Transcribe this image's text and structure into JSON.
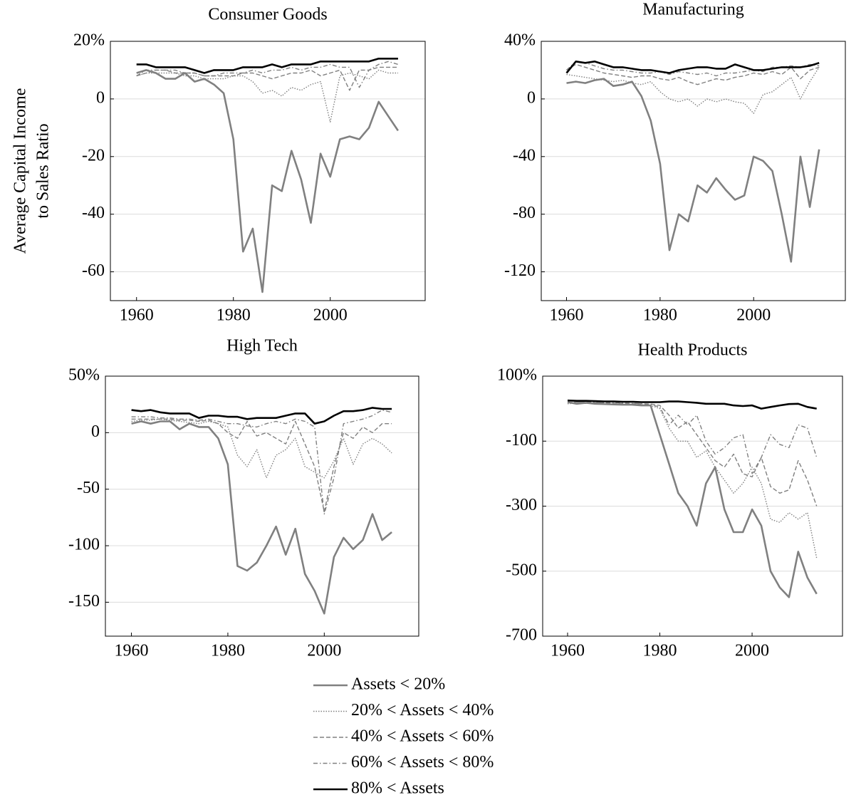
{
  "chart_data": [
    {
      "type": "line",
      "title": "Consumer Goods",
      "ylabel": [
        "Average Capital Income",
        "to Sales Ratio"
      ],
      "x": [
        1960,
        1962,
        1964,
        1966,
        1968,
        1970,
        1972,
        1974,
        1976,
        1978,
        1980,
        1982,
        1984,
        1986,
        1988,
        1990,
        1992,
        1994,
        1996,
        1998,
        2000,
        2002,
        2004,
        2006,
        2008,
        2010,
        2012,
        2014
      ],
      "xlim": [
        1954.6,
        2019.6
      ],
      "xticks": [
        1960,
        1980,
        2000
      ],
      "ylim": [
        -70,
        20
      ],
      "yticks": [
        {
          "value": 20,
          "label": "20%"
        },
        0,
        -20,
        -40,
        -60
      ],
      "grid": true,
      "series": [
        {
          "name": "Assets < 20%",
          "color": "#808080",
          "dash": "solid",
          "values": [
            9,
            10,
            9,
            7,
            7,
            9,
            6,
            7,
            5,
            2,
            -14,
            -53,
            -45,
            -67,
            -30,
            -32,
            -18,
            -28,
            -43,
            -19,
            -27,
            -14,
            -13,
            -14,
            -10,
            -1,
            -6,
            -11
          ]
        },
        {
          "name": "20% < Assets < 40%",
          "color": "#808080",
          "dash": "dotted",
          "values": [
            8,
            9,
            9,
            9,
            9,
            8,
            8,
            7,
            7,
            7,
            8,
            8,
            6,
            2,
            3,
            1,
            4,
            3,
            5,
            6,
            -8,
            8,
            9,
            8,
            7,
            10,
            9,
            9
          ]
        },
        {
          "name": "40% < Assets < 60%",
          "color": "#808080",
          "dash": "dashed",
          "values": [
            8,
            9,
            10,
            10,
            9,
            9,
            9,
            8,
            8,
            8,
            8,
            9,
            9,
            8,
            7,
            8,
            9,
            9,
            10,
            8,
            9,
            10,
            3,
            10,
            10,
            11,
            11,
            11
          ]
        },
        {
          "name": "60% < Assets < 80%",
          "color": "#808080",
          "dash": "dashdot",
          "values": [
            8,
            10,
            10,
            10,
            10,
            9,
            9,
            8,
            8,
            9,
            9,
            9,
            10,
            9,
            10,
            10,
            11,
            10,
            11,
            11,
            12,
            11,
            11,
            4,
            10,
            12,
            13,
            12
          ]
        },
        {
          "name": "80% < Assets",
          "color": "#000000",
          "dash": "solid",
          "values": [
            12,
            12,
            11,
            11,
            11,
            11,
            10,
            9,
            10,
            10,
            10,
            11,
            11,
            11,
            12,
            11,
            12,
            12,
            12,
            13,
            13,
            13,
            13,
            13,
            13,
            14,
            14,
            14
          ]
        }
      ]
    },
    {
      "type": "line",
      "title": "Manufacturing",
      "x": [
        1960,
        1962,
        1964,
        1966,
        1968,
        1970,
        1972,
        1974,
        1976,
        1978,
        1980,
        1982,
        1984,
        1986,
        1988,
        1990,
        1992,
        1994,
        1996,
        1998,
        2000,
        2002,
        2004,
        2006,
        2008,
        2010,
        2012,
        2014
      ],
      "xlim": [
        1954.6,
        2019.6
      ],
      "xticks": [
        1960,
        1980,
        2000
      ],
      "ylim": [
        -140,
        40
      ],
      "yticks": [
        {
          "value": 40,
          "label": "40%"
        },
        0,
        -40,
        -80,
        -120
      ],
      "grid": true,
      "series": [
        {
          "name": "Assets < 20%",
          "color": "#808080",
          "dash": "solid",
          "values": [
            11,
            12,
            11,
            13,
            14,
            9,
            10,
            12,
            2,
            -15,
            -45,
            -105,
            -80,
            -85,
            -60,
            -65,
            -55,
            -63,
            -70,
            -67,
            -40,
            -43,
            -50,
            -80,
            -113,
            -40,
            -75,
            -35
          ]
        },
        {
          "name": "20% < Assets < 40%",
          "color": "#808080",
          "dash": "dotted",
          "values": [
            17,
            16,
            15,
            14,
            13,
            12,
            13,
            11,
            10,
            12,
            5,
            0,
            -2,
            0,
            -5,
            0,
            -2,
            0,
            -2,
            -3,
            -10,
            3,
            5,
            10,
            15,
            0,
            12,
            22
          ]
        },
        {
          "name": "40% < Assets < 60%",
          "color": "#808080",
          "dash": "dashed",
          "values": [
            20,
            24,
            22,
            20,
            18,
            17,
            16,
            15,
            16,
            16,
            14,
            13,
            15,
            12,
            10,
            12,
            14,
            13,
            15,
            16,
            18,
            17,
            19,
            17,
            22,
            14,
            20,
            22
          ]
        },
        {
          "name": "60% < Assets < 80%",
          "color": "#808080",
          "dash": "dashdot",
          "values": [
            20,
            26,
            25,
            23,
            21,
            20,
            20,
            19,
            18,
            18,
            19,
            17,
            19,
            18,
            17,
            18,
            16,
            18,
            18,
            19,
            20,
            19,
            22,
            22,
            23,
            22,
            24,
            23
          ]
        },
        {
          "name": "80% < Assets",
          "color": "#000000",
          "dash": "solid",
          "values": [
            18,
            26,
            25,
            26,
            24,
            22,
            22,
            21,
            20,
            20,
            19,
            18,
            20,
            21,
            22,
            22,
            21,
            21,
            24,
            22,
            20,
            20,
            21,
            22,
            22,
            22,
            23,
            25
          ]
        }
      ]
    },
    {
      "type": "line",
      "title": "High Tech",
      "x": [
        1960,
        1962,
        1964,
        1966,
        1968,
        1970,
        1972,
        1974,
        1976,
        1978,
        1980,
        1982,
        1984,
        1986,
        1988,
        1990,
        1992,
        1994,
        1996,
        1998,
        2000,
        2002,
        2004,
        2006,
        2008,
        2010,
        2012,
        2014
      ],
      "xlim": [
        1954.6,
        2019.6
      ],
      "xticks": [
        1960,
        1980,
        2000
      ],
      "ylim": [
        -180,
        50
      ],
      "yticks": [
        {
          "value": 50,
          "label": "50%"
        },
        0,
        -50,
        -100,
        -150
      ],
      "grid": true,
      "series": [
        {
          "name": "Assets < 20%",
          "color": "#808080",
          "dash": "solid",
          "values": [
            8,
            10,
            8,
            10,
            10,
            3,
            8,
            5,
            5,
            -5,
            -28,
            -118,
            -122,
            -115,
            -100,
            -83,
            -108,
            -85,
            -125,
            -140,
            -160,
            -110,
            -93,
            -103,
            -95,
            -72,
            -95,
            -88
          ]
        },
        {
          "name": "20% < Assets < 40%",
          "color": "#808080",
          "dash": "dotted",
          "values": [
            10,
            11,
            11,
            12,
            11,
            10,
            9,
            8,
            10,
            8,
            5,
            -20,
            -30,
            -15,
            -40,
            -20,
            -15,
            -5,
            -30,
            -35,
            -40,
            -25,
            -5,
            -28,
            -10,
            -5,
            -10,
            -18
          ]
        },
        {
          "name": "40% < Assets < 60%",
          "color": "#808080",
          "dash": "dashed",
          "values": [
            12,
            12,
            12,
            12,
            12,
            11,
            11,
            10,
            11,
            8,
            0,
            -5,
            10,
            -3,
            0,
            -5,
            -10,
            10,
            -10,
            -30,
            -70,
            -30,
            0,
            -5,
            5,
            0,
            8,
            8
          ]
        },
        {
          "name": "60% < Assets < 80%",
          "color": "#808080",
          "dash": "dashdot",
          "values": [
            14,
            14,
            14,
            13,
            13,
            12,
            12,
            11,
            12,
            10,
            8,
            8,
            6,
            5,
            8,
            10,
            8,
            12,
            10,
            5,
            -72,
            -40,
            8,
            10,
            12,
            15,
            20,
            18
          ]
        },
        {
          "name": "80% < Assets",
          "color": "#000000",
          "dash": "solid",
          "values": [
            20,
            19,
            20,
            18,
            17,
            17,
            17,
            13,
            15,
            15,
            14,
            14,
            12,
            13,
            13,
            13,
            15,
            17,
            17,
            8,
            10,
            15,
            19,
            19,
            20,
            22,
            21,
            21
          ]
        }
      ]
    },
    {
      "type": "line",
      "title": "Health Products",
      "x": [
        1960,
        1962,
        1964,
        1966,
        1968,
        1970,
        1972,
        1974,
        1976,
        1978,
        1980,
        1982,
        1984,
        1986,
        1988,
        1990,
        1992,
        1994,
        1996,
        1998,
        2000,
        2002,
        2004,
        2006,
        2008,
        2010,
        2012,
        2014
      ],
      "xlim": [
        1954.6,
        2019.6
      ],
      "xticks": [
        1960,
        1980,
        2000
      ],
      "ylim": [
        -700,
        100
      ],
      "yticks": [
        {
          "value": 100,
          "label": "100%"
        },
        -100,
        -300,
        -500,
        -700
      ],
      "grid": true,
      "series": [
        {
          "name": "Assets < 20%",
          "color": "#808080",
          "dash": "solid",
          "values": [
            20,
            15,
            18,
            15,
            14,
            13,
            12,
            12,
            10,
            10,
            -80,
            -170,
            -260,
            -300,
            -360,
            -230,
            -180,
            -310,
            -380,
            -380,
            -310,
            -360,
            -500,
            -550,
            -580,
            -440,
            -520,
            -570
          ]
        },
        {
          "name": "20% < Assets < 40%",
          "color": "#808080",
          "dash": "dotted",
          "values": [
            15,
            17,
            16,
            16,
            15,
            14,
            14,
            13,
            12,
            10,
            0,
            -60,
            -100,
            -100,
            -150,
            -130,
            -180,
            -220,
            -260,
            -230,
            -180,
            -230,
            -340,
            -350,
            -320,
            -340,
            -320,
            -460
          ]
        },
        {
          "name": "40% < Assets < 60%",
          "color": "#808080",
          "dash": "dashed",
          "values": [
            18,
            20,
            20,
            18,
            18,
            16,
            16,
            15,
            15,
            14,
            10,
            -20,
            -60,
            -40,
            -80,
            -120,
            -160,
            -180,
            -140,
            -200,
            -210,
            -150,
            -240,
            -260,
            -250,
            -160,
            -220,
            -300
          ]
        },
        {
          "name": "60% < Assets < 80%",
          "color": "#808080",
          "dash": "dashdot",
          "values": [
            18,
            20,
            20,
            20,
            18,
            18,
            17,
            16,
            15,
            12,
            5,
            -50,
            -20,
            -50,
            -20,
            -100,
            -140,
            -120,
            -90,
            -80,
            -200,
            -150,
            -80,
            -110,
            -120,
            -50,
            -60,
            -150
          ]
        },
        {
          "name": "80% < Assets",
          "color": "#000000",
          "dash": "solid",
          "values": [
            25,
            24,
            24,
            23,
            22,
            22,
            21,
            21,
            20,
            20,
            20,
            22,
            22,
            20,
            18,
            15,
            15,
            15,
            10,
            8,
            10,
            0,
            5,
            10,
            14,
            15,
            5,
            0
          ]
        }
      ]
    }
  ]
}
